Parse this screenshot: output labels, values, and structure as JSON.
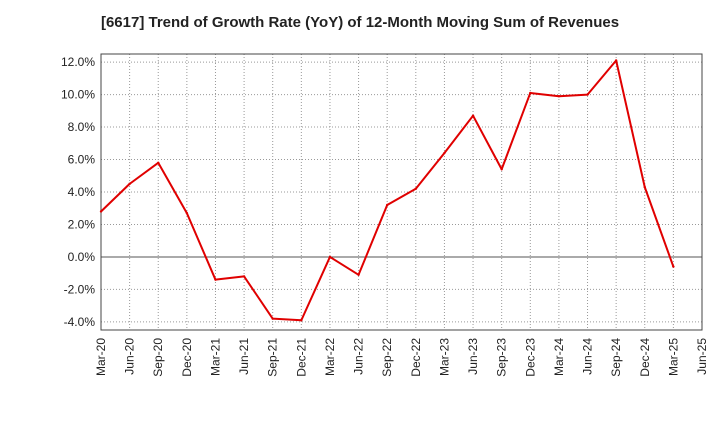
{
  "chart_data": {
    "type": "line",
    "title": "[6617]  Trend of Growth Rate (YoY) of 12-Month Moving Sum of Revenues",
    "xlabel": "",
    "ylabel": "",
    "ylim": [
      -4.5,
      12.5
    ],
    "y_ticks": [
      -4.0,
      -2.0,
      0.0,
      2.0,
      4.0,
      6.0,
      8.0,
      10.0,
      12.0
    ],
    "y_tick_labels": [
      "-4.0%",
      "-2.0%",
      "0.0%",
      "2.0%",
      "4.0%",
      "6.0%",
      "8.0%",
      "10.0%",
      "12.0%"
    ],
    "categories": [
      "Mar-20",
      "Jun-20",
      "Sep-20",
      "Dec-20",
      "Mar-21",
      "Jun-21",
      "Sep-21",
      "Dec-21",
      "Mar-22",
      "Jun-22",
      "Sep-22",
      "Dec-22",
      "Mar-23",
      "Jun-23",
      "Sep-23",
      "Dec-23",
      "Mar-24",
      "Jun-24",
      "Sep-24",
      "Dec-24",
      "Mar-25",
      "Jun-25"
    ],
    "grid": true,
    "series": [
      {
        "color": "#e00000",
        "values": [
          2.8,
          4.5,
          5.8,
          2.7,
          -1.4,
          -1.2,
          -3.8,
          -3.9,
          0.0,
          -1.1,
          3.2,
          4.2,
          6.4,
          8.7,
          5.4,
          10.1,
          9.9,
          10.0,
          12.1,
          4.3,
          -0.6,
          null
        ]
      }
    ]
  }
}
